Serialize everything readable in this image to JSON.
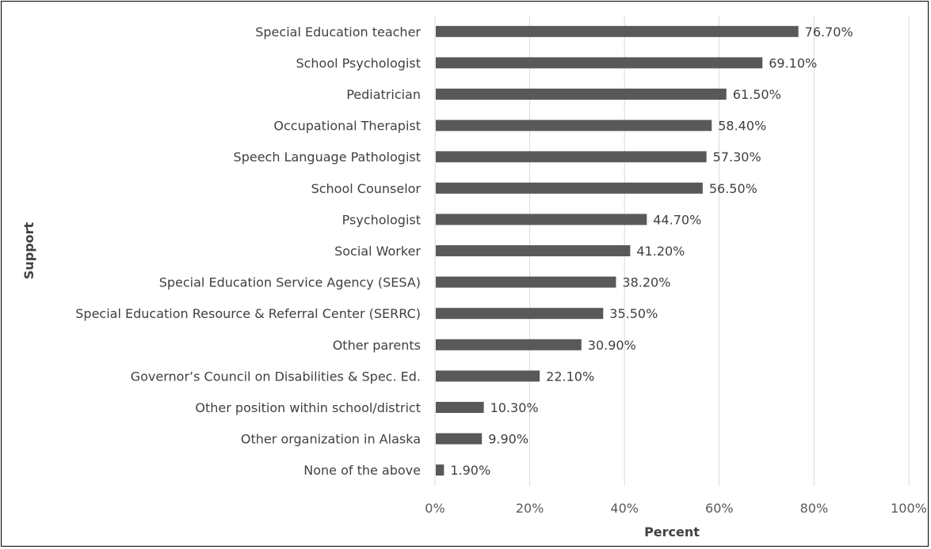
{
  "chart_data": {
    "type": "bar",
    "orientation": "horizontal",
    "title": "",
    "xlabel": "Percent",
    "ylabel": "Support",
    "xlim": [
      0,
      100
    ],
    "x_ticks": [
      "0%",
      "20%",
      "40%",
      "60%",
      "80%",
      "100%"
    ],
    "grid": "vertical",
    "bar_color": "#595959",
    "categories": [
      "Special Education teacher",
      "School Psychologist",
      "Pediatrician",
      "Occupational Therapist",
      "Speech Language Pathologist",
      "School Counselor",
      "Psychologist",
      "Social Worker",
      "Special Education Service Agency (SESA)",
      "Special Education Resource & Referral Center (SERRC)",
      "Other parents",
      "Governor’s Council on Disabilities & Spec. Ed.",
      "Other position within school/district",
      "Other organization in Alaska",
      "None of the above"
    ],
    "values": [
      76.7,
      69.1,
      61.5,
      58.4,
      57.3,
      56.5,
      44.7,
      41.2,
      38.2,
      35.5,
      30.9,
      22.1,
      10.3,
      9.9,
      1.9
    ],
    "data_labels": [
      "76.70%",
      "69.10%",
      "61.50%",
      "58.40%",
      "57.30%",
      "56.50%",
      "44.70%",
      "41.20%",
      "38.20%",
      "35.50%",
      "30.90%",
      "22.10%",
      "10.30%",
      "9.90%",
      "1.90%"
    ]
  }
}
